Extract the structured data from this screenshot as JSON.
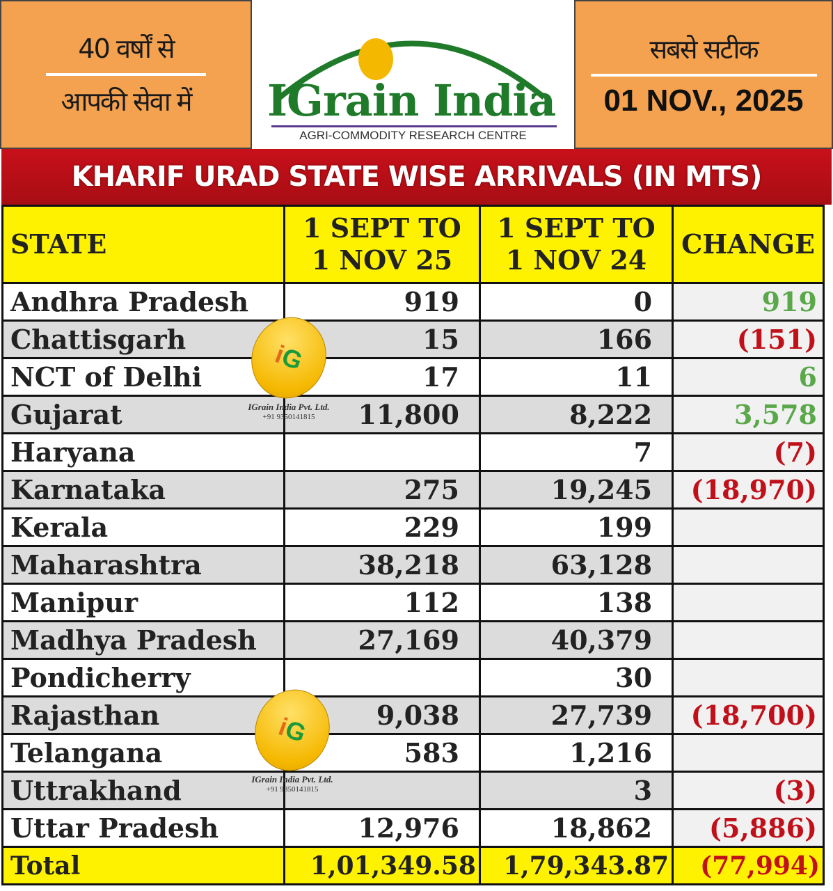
{
  "header": {
    "left_line1": "40 वर्षों से",
    "left_line2": "आपकी सेवा में",
    "brand": "IGrain India",
    "tagline": "AGRI-COMMODITY RESEARCH CENTRE",
    "right_line1": "सबसे सटीक",
    "date": "01 NOV., 2025"
  },
  "title": "KHARIF URAD STATE WISE ARRIVALS (IN MTS)",
  "table": {
    "headers": [
      "STATE",
      "1 SEPT TO 1 NOV 25",
      "1 SEPT TO 1 NOV 24",
      "CHANGE"
    ],
    "headers_split": [
      [
        "STATE"
      ],
      [
        "1 SEPT TO",
        "1 NOV 25"
      ],
      [
        "1 SEPT TO",
        "1 NOV 24"
      ],
      [
        "CHANGE"
      ]
    ],
    "rows": [
      {
        "state": "Andhra Pradesh",
        "y25": "919",
        "y24": "0",
        "change": "919",
        "sign": "pos"
      },
      {
        "state": "Chattisgarh",
        "y25": "15",
        "y24": "166",
        "change": "(151)",
        "sign": "neg"
      },
      {
        "state": "NCT of Delhi",
        "y25": "17",
        "y24": "11",
        "change": "6",
        "sign": "pos"
      },
      {
        "state": "Gujarat",
        "y25": "11,800",
        "y24": "8,222",
        "change": "3,578",
        "sign": "pos"
      },
      {
        "state": "Haryana",
        "y25": "",
        "y24": "7",
        "change": "(7)",
        "sign": "neg"
      },
      {
        "state": "Karnataka",
        "y25": "275",
        "y24": "19,245",
        "change": "(18,970)",
        "sign": "neg"
      },
      {
        "state": "Kerala",
        "y25": "229",
        "y24": "199",
        "change": "",
        "sign": ""
      },
      {
        "state": "Maharashtra",
        "y25": "38,218",
        "y24": "63,128",
        "change": "",
        "sign": ""
      },
      {
        "state": "Manipur",
        "y25": "112",
        "y24": "138",
        "change": "",
        "sign": ""
      },
      {
        "state": "Madhya Pradesh",
        "y25": "27,169",
        "y24": "40,379",
        "change": "",
        "sign": ""
      },
      {
        "state": "Pondicherry",
        "y25": "",
        "y24": "30",
        "change": "",
        "sign": ""
      },
      {
        "state": "Rajasthan",
        "y25": "9,038",
        "y24": "27,739",
        "change": "(18,700)",
        "sign": "neg"
      },
      {
        "state": "Telangana",
        "y25": "583",
        "y24": "1,216",
        "change": "",
        "sign": ""
      },
      {
        "state": "Uttrakhand",
        "y25": "",
        "y24": "3",
        "change": "(3)",
        "sign": "neg"
      },
      {
        "state": "Uttar Pradesh",
        "y25": "12,976",
        "y24": "18,862",
        "change": "(5,886)",
        "sign": "neg"
      }
    ],
    "total": {
      "state": "Total",
      "y25": "1,01,349.58",
      "y24": "1,79,343.87",
      "change": "(77,994)"
    }
  },
  "watermark": {
    "logo": "iG",
    "name": "IGrain India Pvt. Ltd.",
    "phone": "+91 9350141815"
  }
}
